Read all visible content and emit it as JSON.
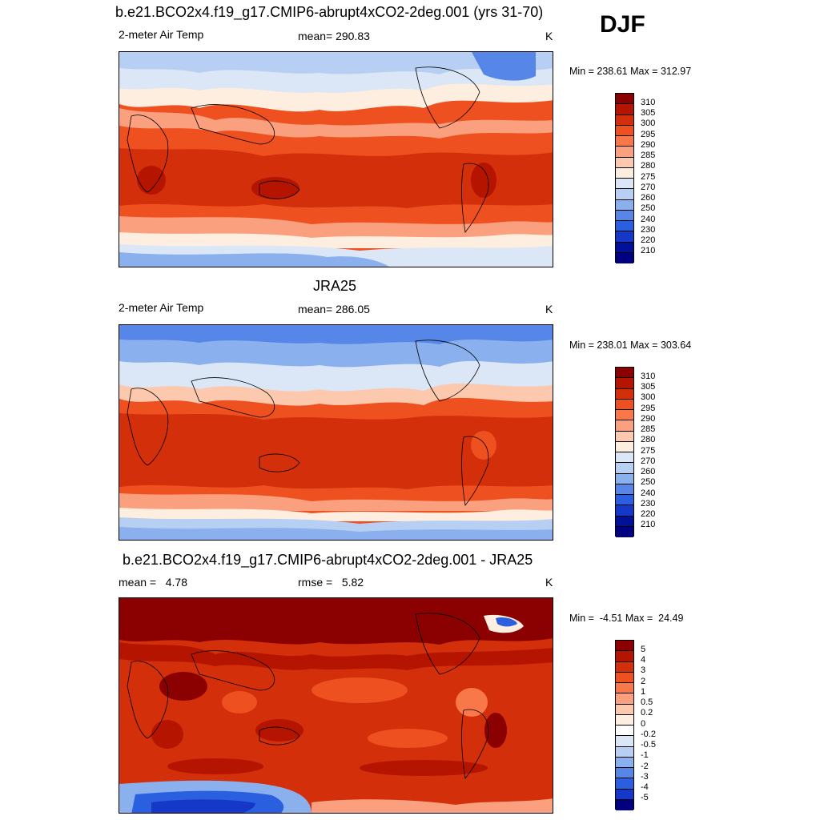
{
  "season": "DJF",
  "panels": [
    {
      "title": "b.e21.BCO2x4.f19_g17.CMIP6-abrupt4xCO2-2deg.001 (yrs 31-70)",
      "left_label": "2-meter Air Temp",
      "center_label": "mean= 290.83",
      "unit": "K",
      "minmax": "Min = 238.61 Max = 312.97",
      "colorbar_labels": [
        "310",
        "305",
        "300",
        "295",
        "290",
        "285",
        "280",
        "275",
        "270",
        "260",
        "250",
        "240",
        "230",
        "220",
        "210"
      ]
    },
    {
      "title": "JRA25",
      "left_label": "2-meter Air Temp",
      "center_label": "mean= 286.05",
      "unit": "K",
      "minmax": "Min = 238.01 Max = 303.64",
      "colorbar_labels": [
        "310",
        "305",
        "300",
        "295",
        "290",
        "285",
        "280",
        "275",
        "270",
        "260",
        "250",
        "240",
        "230",
        "220",
        "210"
      ]
    },
    {
      "title": "b.e21.BCO2x4.f19_g17.CMIP6-abrupt4xCO2-2deg.001 - JRA25",
      "left_label": "mean =   4.78",
      "center_label": "rmse =   5.82",
      "unit": "K",
      "minmax": "Min =  -4.51 Max =  24.49",
      "colorbar_labels": [
        "5",
        "4",
        "3",
        "2",
        "1",
        "0.5",
        "0.2",
        "0",
        "-0.2",
        "-0.5",
        "-1",
        "-2",
        "-3",
        "-4",
        "-5"
      ]
    }
  ],
  "colors": {
    "abs_scale": [
      "#8b0000",
      "#b51400",
      "#d32f0a",
      "#ee5020",
      "#f8784a",
      "#fba07e",
      "#fcc9ae",
      "#fdeedf",
      "#dbe7f7",
      "#b7cff3",
      "#8bb0ee",
      "#5686e8",
      "#2a5fe0",
      "#1538c8",
      "#00129a",
      "#000080"
    ],
    "diff_scale": [
      "#8b0000",
      "#b51400",
      "#d32f0a",
      "#ee5020",
      "#f8784a",
      "#fba07e",
      "#fcc9ae",
      "#fdeedf",
      "#ffffff",
      "#dbe7f7",
      "#b7cff3",
      "#8bb0ee",
      "#5686e8",
      "#2a5fe0",
      "#1538c8",
      "#000080"
    ]
  }
}
